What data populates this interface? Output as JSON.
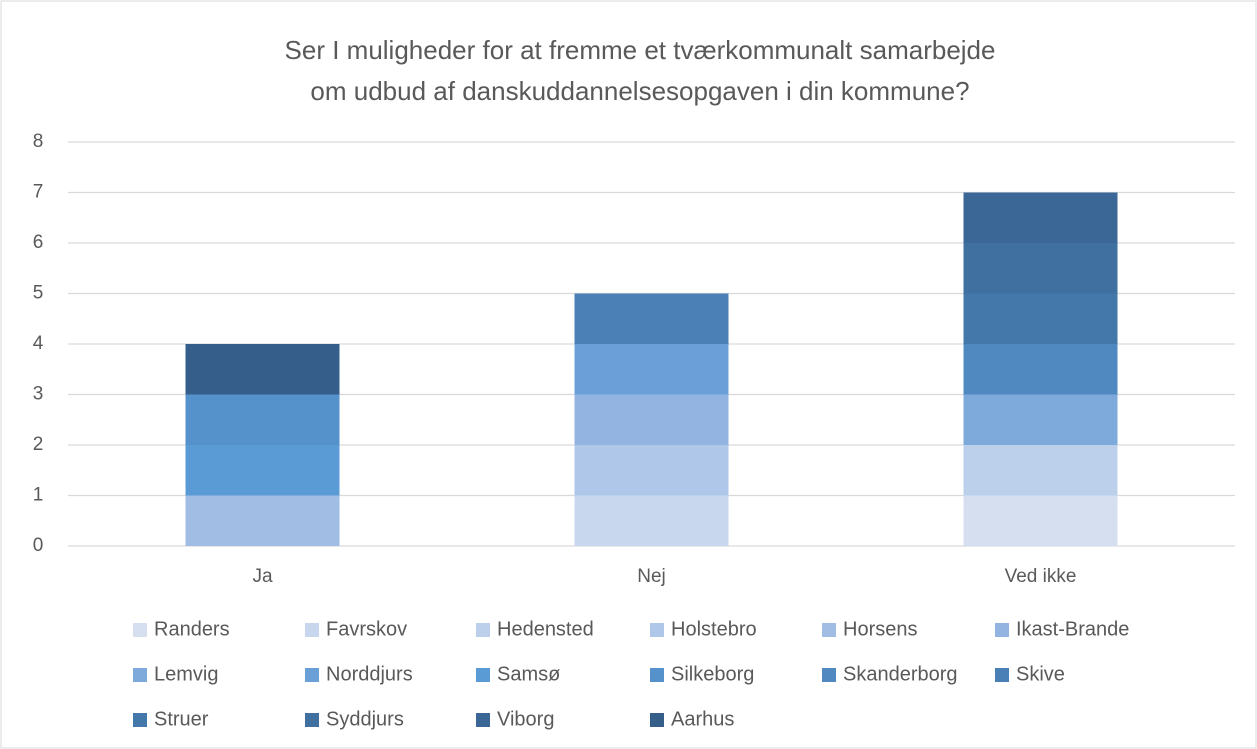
{
  "chart_data": {
    "type": "stacked_bar",
    "title": [
      "Ser I muligheder for at fremme et tværkommunalt samarbejde",
      "om udbud af danskuddannelsesopgaven i din kommune?"
    ],
    "categories": [
      "Ja",
      "Nej",
      "Ved ikke"
    ],
    "ylim": [
      0,
      8
    ],
    "yticks": [
      0,
      1,
      2,
      3,
      4,
      5,
      6,
      7,
      8
    ],
    "grid": true,
    "legend": "bottom",
    "series": [
      {
        "name": "Randers",
        "color": "#d5dff0",
        "values": [
          0,
          0,
          1
        ]
      },
      {
        "name": "Favrskov",
        "color": "#c9d7ee",
        "values": [
          0,
          1,
          0
        ]
      },
      {
        "name": "Hedensted",
        "color": "#bccfeb",
        "values": [
          0,
          0,
          1
        ]
      },
      {
        "name": "Holstebro",
        "color": "#afc7e8",
        "values": [
          0,
          1,
          0
        ]
      },
      {
        "name": "Horsens",
        "color": "#a2bde4",
        "values": [
          1,
          0,
          0
        ]
      },
      {
        "name": "Ikast-Brande",
        "color": "#93b4e0",
        "values": [
          0,
          1,
          0
        ]
      },
      {
        "name": "Lemvig",
        "color": "#7eaadb",
        "values": [
          0,
          0,
          1
        ]
      },
      {
        "name": "Norddjurs",
        "color": "#6aa0d7",
        "values": [
          0,
          1,
          0
        ]
      },
      {
        "name": "Samsø",
        "color": "#5b9bd5",
        "values": [
          1,
          0,
          0
        ]
      },
      {
        "name": "Silkeborg",
        "color": "#5592cb",
        "values": [
          1,
          0,
          0
        ]
      },
      {
        "name": "Skanderborg",
        "color": "#4f89c0",
        "values": [
          0,
          0,
          1
        ]
      },
      {
        "name": "Skive",
        "color": "#4a80b5",
        "values": [
          0,
          1,
          0
        ]
      },
      {
        "name": "Struer",
        "color": "#4478ab",
        "values": [
          0,
          0,
          1
        ]
      },
      {
        "name": "Syddjurs",
        "color": "#3f70a0",
        "values": [
          0,
          0,
          1
        ]
      },
      {
        "name": "Viborg",
        "color": "#3a6796",
        "values": [
          0,
          0,
          1
        ]
      },
      {
        "name": "Aarhus",
        "color": "#355f8a",
        "values": [
          1,
          0,
          0
        ]
      }
    ]
  }
}
